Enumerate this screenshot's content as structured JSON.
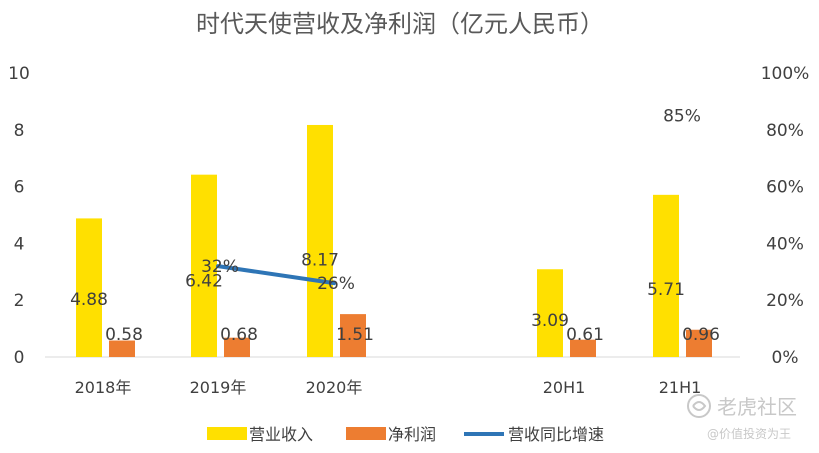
{
  "chart_data": {
    "type": "bar",
    "title": "时代天使营收及净利润（亿元人民币）",
    "categories": [
      "2018年",
      "2019年",
      "2020年",
      "20H1",
      "21H1"
    ],
    "series": [
      {
        "name": "营业收入",
        "type": "bar",
        "axis": "left",
        "color": "#FFE000",
        "values": [
          4.88,
          6.42,
          8.17,
          3.09,
          5.71
        ],
        "labels": [
          "4.88",
          "6.42",
          "8.17",
          "3.09",
          "5.71"
        ]
      },
      {
        "name": "净利润",
        "type": "bar",
        "axis": "left",
        "color": "#ED7D31",
        "values": [
          0.58,
          0.68,
          1.51,
          0.61,
          0.96
        ],
        "labels": [
          "0.58",
          "0.68",
          "1.51",
          "0.61",
          "0.96"
        ]
      },
      {
        "name": "营收同比增速",
        "type": "line",
        "axis": "right",
        "color": "#2E75B6",
        "values": [
          null,
          0.32,
          0.26,
          null,
          0.85
        ],
        "labels": [
          "",
          "32%",
          "26%",
          "",
          "85%"
        ]
      }
    ],
    "y_left": {
      "range": [
        0,
        10
      ],
      "ticks": [
        "0",
        "2",
        "4",
        "6",
        "8",
        "10"
      ]
    },
    "y_right": {
      "range": [
        0,
        1
      ],
      "ticks": [
        "0%",
        "20%",
        "40%",
        "60%",
        "80%",
        "100%"
      ]
    },
    "legend_position": "bottom",
    "grid": false
  },
  "watermark": {
    "brand": "老虎社区",
    "author": "@价值投资为王"
  }
}
